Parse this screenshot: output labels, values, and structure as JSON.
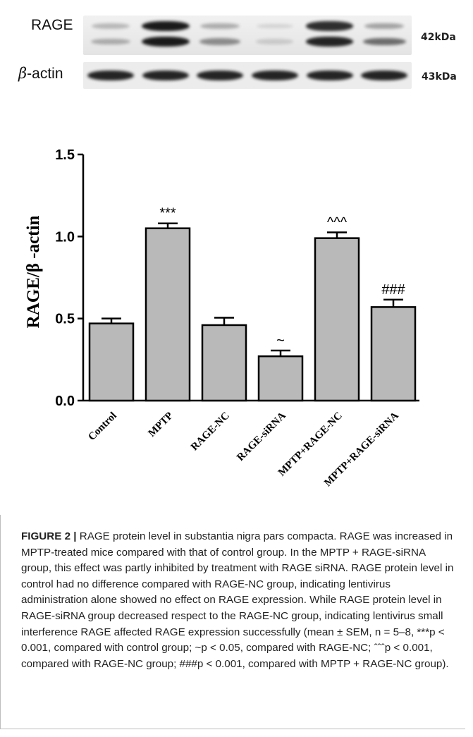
{
  "blot": {
    "rows": [
      {
        "label": "RAGE",
        "kda": "42kDa"
      },
      {
        "label_symbol": "β",
        "label_text": "-actin",
        "kda": "43kDa"
      }
    ],
    "lanes": 6,
    "rage_upper_intensity": [
      0.25,
      1.0,
      0.3,
      0.12,
      0.9,
      0.35
    ],
    "rage_lower_intensity": [
      0.3,
      1.0,
      0.45,
      0.15,
      0.95,
      0.6
    ],
    "actin_intensity": [
      0.95,
      0.95,
      0.95,
      0.95,
      0.95,
      0.95
    ]
  },
  "chart_data": {
    "type": "bar",
    "ylabel": "RAGE/β -actin",
    "ylim": [
      0,
      1.5
    ],
    "yticks": [
      "0.0",
      "0.5",
      "1.0",
      "1.5"
    ],
    "ytick_values": [
      0,
      0.5,
      1.0,
      1.5
    ],
    "categories": [
      "Control",
      "MPTP",
      "RAGE-NC",
      "RAGE-siRNA",
      "MPTP+RAGE-NC",
      "MPTP+RAGE-siRNA"
    ],
    "values": [
      0.47,
      1.05,
      0.46,
      0.27,
      0.99,
      0.57
    ],
    "errors": [
      0.03,
      0.03,
      0.045,
      0.035,
      0.035,
      0.045
    ],
    "annotations": [
      "",
      "***",
      "",
      "~",
      "^^^",
      "###"
    ],
    "bar_color": "#b9b9b9"
  },
  "caption": {
    "figure_label": "FIGURE 2 |",
    "text": "RAGE protein level in substantia nigra pars compacta. RAGE was increased in MPTP-treated mice compared with that of control group. In the MPTP + RAGE-siRNA group, this effect was partly inhibited by treatment with RAGE siRNA. RAGE protein level in control had no difference compared with RAGE-NC group, indicating lentivirus administration alone showed no effect on RAGE expression. While RAGE protein level in RAGE-siRNA group decreased respect to the RAGE-NC group, indicating lentivirus small interference RAGE affected RAGE expression successfully (mean ± SEM, n = 5–8, ***p < 0.001, compared with control group; ~p < 0.05, compared with RAGE-NC; ˆˆˆp < 0.001, compared with RAGE-NC group; ###p < 0.001, compared with MPTP + RAGE-NC group)."
  }
}
